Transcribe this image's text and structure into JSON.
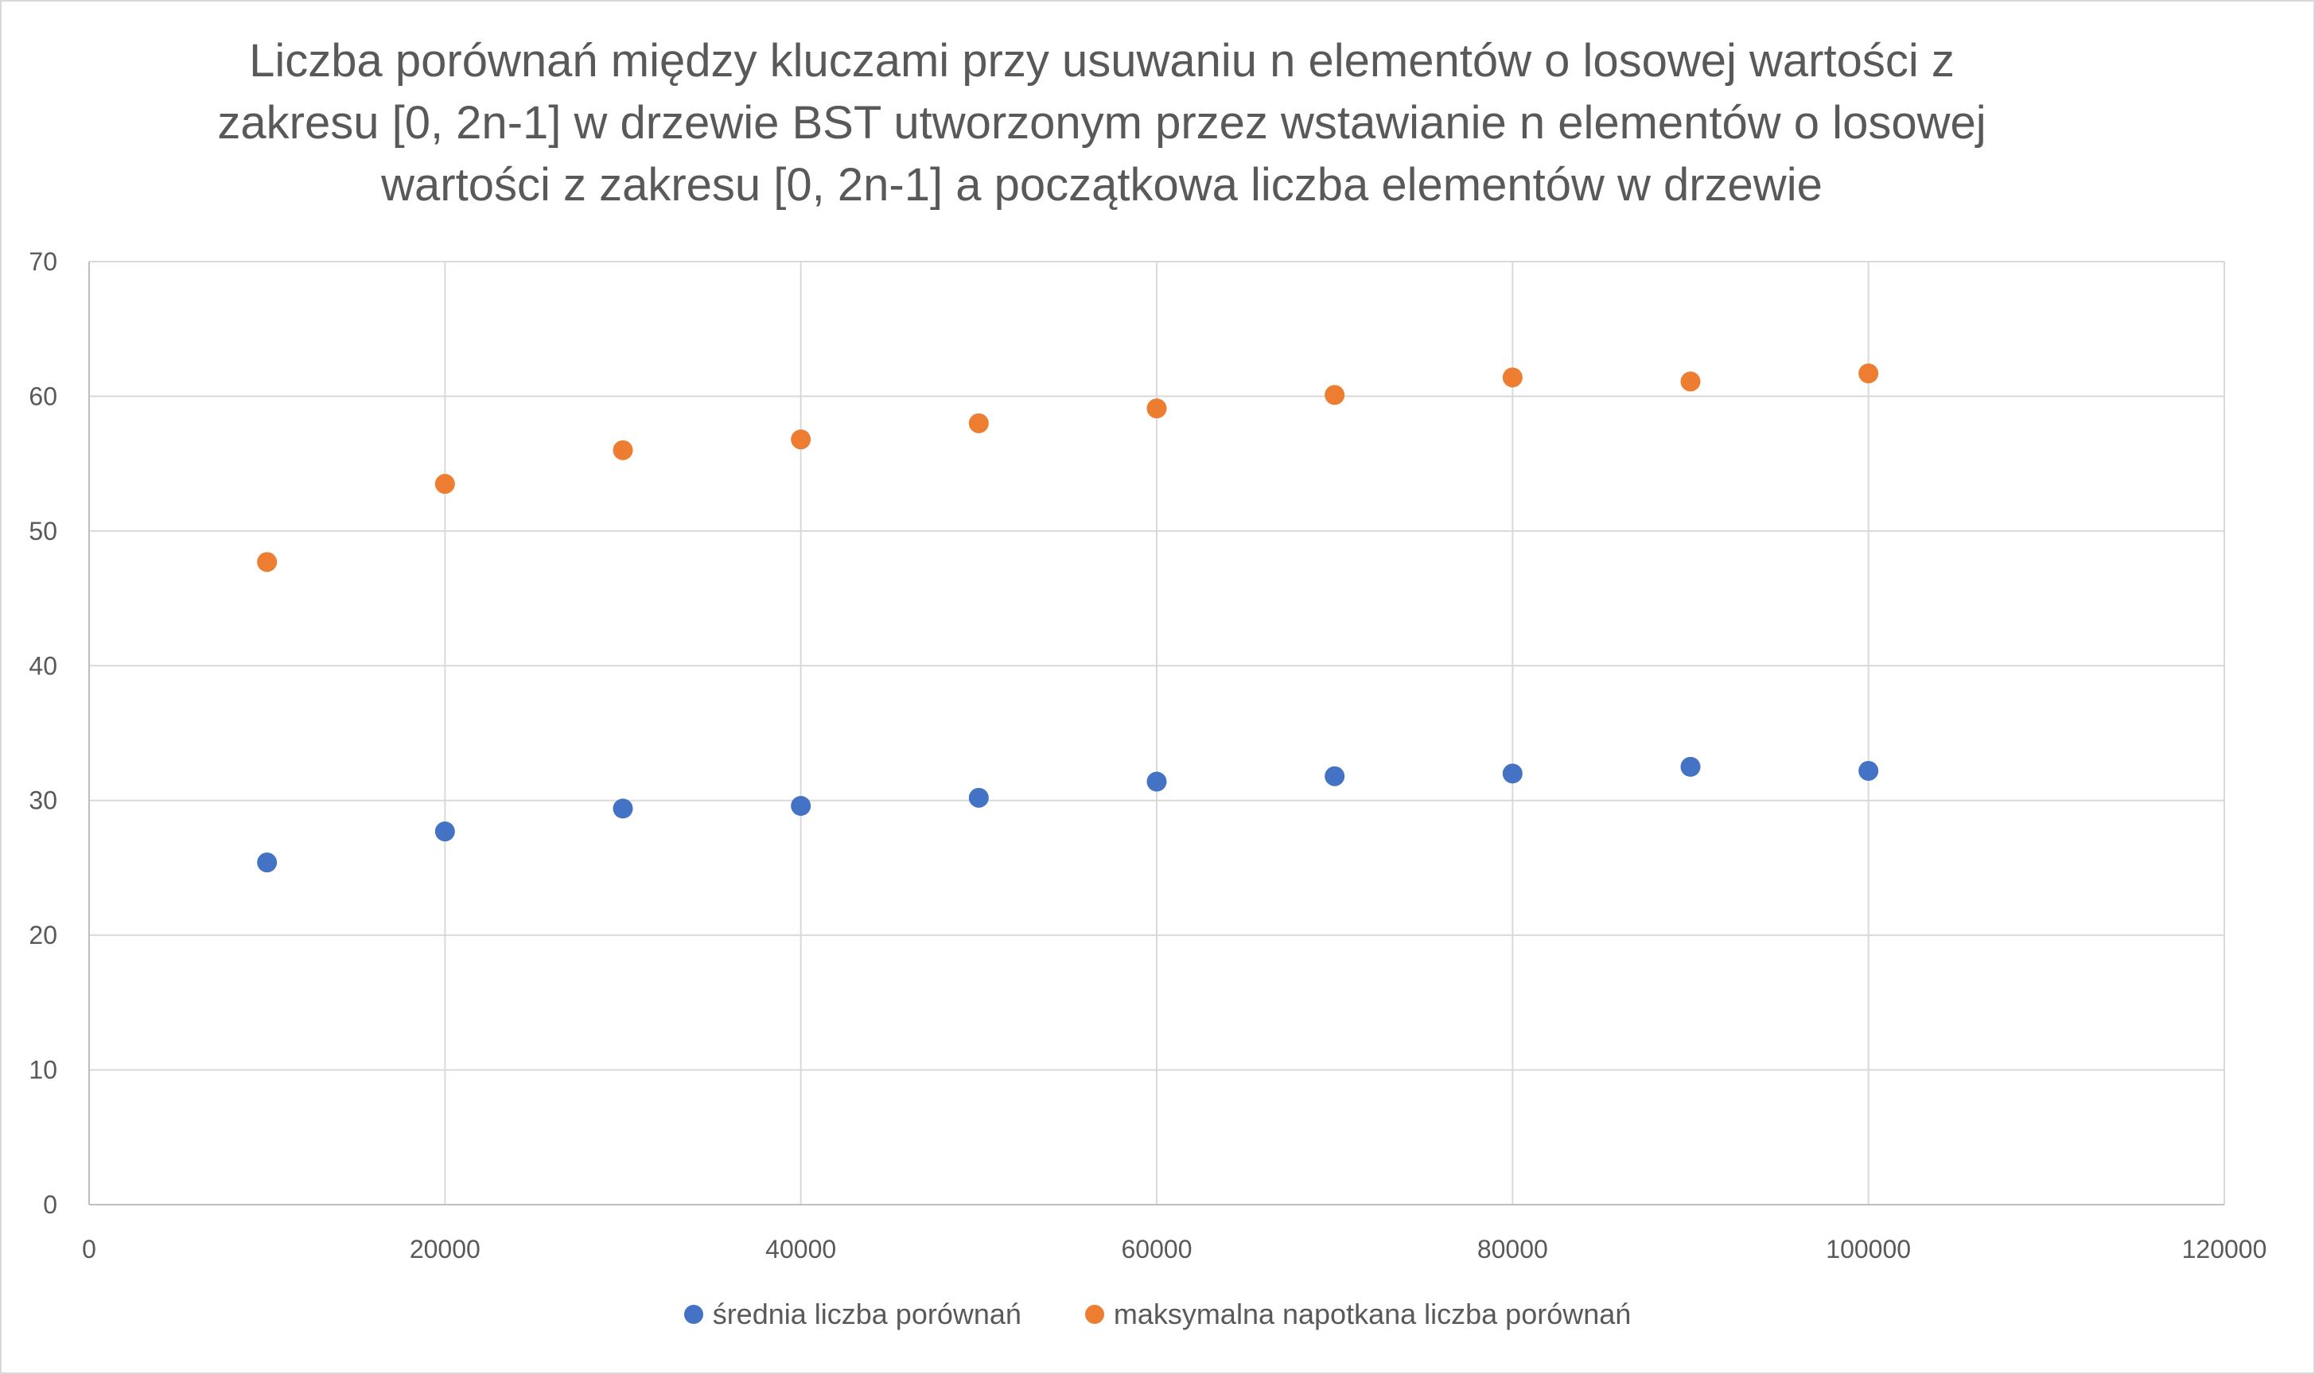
{
  "chart_data": {
    "type": "scatter",
    "title": "Liczba porównań między kluczami przy usuwaniu n elementów o losowej wartości z zakresu [0, 2n-1] w drzewie BST utworzonym przez wstawianie n elementów o losowej wartości z zakresu [0, 2n-1] a początkowa liczba elementów w drzewie",
    "xlabel": "",
    "ylabel": "",
    "xlim": [
      0,
      120000
    ],
    "ylim": [
      0,
      70
    ],
    "x_ticks": [
      "0",
      "20000",
      "40000",
      "60000",
      "80000",
      "100000",
      "120000"
    ],
    "y_ticks": [
      "0",
      "10",
      "20",
      "30",
      "40",
      "50",
      "60",
      "70"
    ],
    "grid": true,
    "legend_position": "bottom",
    "x": [
      10000,
      20000,
      30000,
      40000,
      50000,
      60000,
      70000,
      80000,
      90000,
      100000
    ],
    "series": [
      {
        "name": "średnia liczba porównań",
        "color": "#4472c4",
        "values": [
          25.4,
          27.7,
          29.4,
          29.6,
          30.2,
          31.4,
          31.8,
          32.0,
          32.5,
          32.2
        ]
      },
      {
        "name": "maksymalna napotkana liczba porównań",
        "color": "#ed7d31",
        "values": [
          47.7,
          53.5,
          56.0,
          56.8,
          58.0,
          59.1,
          60.1,
          61.4,
          61.1,
          61.7
        ]
      }
    ]
  }
}
